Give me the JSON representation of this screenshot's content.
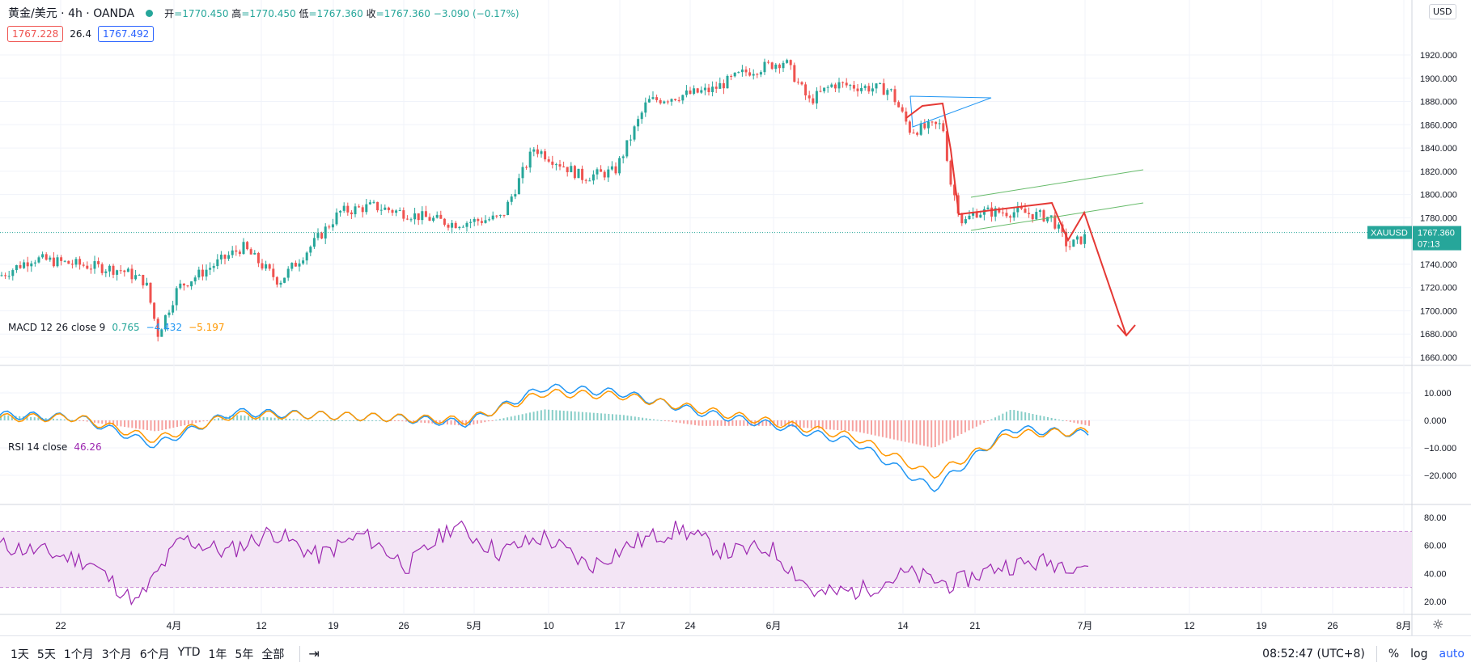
{
  "header": {
    "symbol": "黄金/美元 · 4h · OANDA",
    "ohlc": [
      {
        "k": "开",
        "v": "=1770.450"
      },
      {
        "k": "高",
        "v": "=1770.450"
      },
      {
        "k": "低",
        "v": "=1767.360"
      },
      {
        "k": "收",
        "v": "=1767.360"
      }
    ],
    "change": "−3.090 (−0.17%)",
    "bid": "1767.228",
    "spread": "26.4",
    "ask": "1767.492"
  },
  "price_axis": {
    "currency": "USD",
    "ticks": [
      "1920.000",
      "1900.000",
      "1880.000",
      "1860.000",
      "1840.000",
      "1820.000",
      "1800.000",
      "1780.000",
      "1740.000",
      "1720.000",
      "1700.000",
      "1680.000",
      "1660.000"
    ],
    "last_symbol": "XAUUSD",
    "last_price": "1767.360",
    "countdown": "07:13"
  },
  "macd": {
    "label": "MACD 12 26 close 9",
    "v1": "0.765",
    "v2": "−4.432",
    "v3": "−5.197",
    "ticks": [
      "10.000",
      "0.000",
      "−10.000",
      "−20.000"
    ]
  },
  "rsi": {
    "label": "RSI 14 close",
    "value": "46.26",
    "ticks": [
      "80.00",
      "60.00",
      "40.00",
      "20.00"
    ]
  },
  "time_axis": {
    "labels": [
      "22",
      "4月",
      "12",
      "19",
      "26",
      "5月",
      "10",
      "17",
      "24",
      "6月",
      "14",
      "21",
      "7月",
      "12",
      "19",
      "26",
      "8月"
    ]
  },
  "bottom": {
    "timeframes": [
      "1天",
      "5天",
      "1个月",
      "3个月",
      "6个月",
      "YTD",
      "1年",
      "5年",
      "全部"
    ],
    "time": "08:52:47 (UTC+8)",
    "percent": "%",
    "log": "log",
    "auto": "auto"
  },
  "colors": {
    "up": "#26a69a",
    "down": "#ef5350",
    "macd_line": "#2196f3",
    "signal_line": "#ff9800",
    "rsi_line": "#9c27b0",
    "rsi_band": "#f3e5f5",
    "drawing": "#e53935",
    "triangle": "#2196f3",
    "channel": "#66bb6a"
  },
  "chart_data": [
    {
      "type": "candlestick",
      "title": "黄金/美元 · 4h · OANDA",
      "ylim": [
        1660,
        1930
      ],
      "x_labels": [
        "22",
        "4月",
        "12",
        "19",
        "26",
        "5月",
        "10",
        "17",
        "24",
        "6月",
        "14",
        "21",
        "7月",
        "12",
        "19",
        "26",
        "8月"
      ],
      "close_trend": [
        {
          "x": "22",
          "y": 1730
        },
        {
          "x": "4月",
          "y": 1680
        },
        {
          "x": "12",
          "y": 1745
        },
        {
          "x": "19",
          "y": 1775
        },
        {
          "x": "26",
          "y": 1780
        },
        {
          "x": "5月",
          "y": 1770
        },
        {
          "x": "10",
          "y": 1835
        },
        {
          "x": "17",
          "y": 1868
        },
        {
          "x": "24",
          "y": 1880
        },
        {
          "x": "6月",
          "y": 1910
        },
        {
          "x": "14",
          "y": 1858
        },
        {
          "x": "21",
          "y": 1780
        },
        {
          "x": "7月",
          "y": 1767.36
        }
      ],
      "last": {
        "open": 1770.45,
        "high": 1770.45,
        "low": 1767.36,
        "close": 1767.36
      }
    },
    {
      "type": "line",
      "title": "MACD 12 26 close 9",
      "ylim": [
        -25,
        15
      ],
      "series": [
        {
          "name": "MACD",
          "values": [
            2,
            1,
            -9,
            3,
            2,
            1,
            -1,
            12,
            10,
            3,
            -2,
            -8,
            -25,
            -3,
            -5
          ]
        },
        {
          "name": "Signal",
          "values": [
            1,
            1,
            -7,
            2,
            2,
            1,
            0,
            10,
            9,
            4,
            -1,
            -6,
            -20,
            -5,
            -4
          ]
        }
      ],
      "last_values": [
        0.765,
        -4.432,
        -5.197
      ]
    },
    {
      "type": "line",
      "title": "RSI 14 close",
      "ylim": [
        15,
        85
      ],
      "band": [
        30,
        70
      ],
      "series": [
        {
          "name": "RSI",
          "values": [
            60,
            55,
            48,
            18,
            65,
            55,
            70,
            52,
            68,
            45,
            75,
            55,
            66,
            45,
            62,
            72,
            55,
            58,
            25,
            28,
            40,
            32,
            45,
            48,
            46.26
          ]
        }
      ]
    }
  ]
}
